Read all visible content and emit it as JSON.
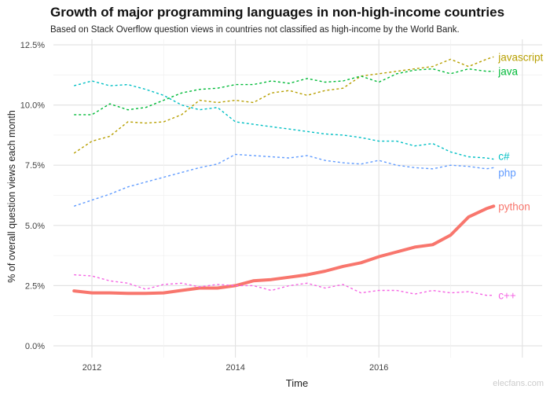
{
  "chart_data": {
    "type": "line",
    "title": "Growth of major programming languages in non-high-income countries",
    "subtitle": "Based on Stack Overflow question views in countries not classified as high-income by the World Bank.",
    "xlabel": "Time",
    "ylabel": "% of overall question views each month",
    "xlim": [
      2011.5,
      2018.1
    ],
    "ylim": [
      0,
      12.5
    ],
    "xticks": [
      "2012",
      "2014",
      "2016"
    ],
    "yticks": [
      "0.0%",
      "2.5%",
      "5.0%",
      "7.5%",
      "10.0%",
      "12.5%"
    ],
    "grid": true,
    "legend": "direct-labels-right",
    "x": [
      2011.75,
      2012,
      2012.25,
      2012.5,
      2012.75,
      2013,
      2013.25,
      2013.5,
      2013.75,
      2014,
      2014.25,
      2014.5,
      2014.75,
      2015,
      2015.25,
      2015.5,
      2015.75,
      2016,
      2016.25,
      2016.5,
      2016.75,
      2017,
      2017.25,
      2017.5,
      2017.6
    ],
    "series": [
      {
        "name": "javascript",
        "color": "#b79f00",
        "style": "dashed",
        "values": [
          8.0,
          8.5,
          8.7,
          9.3,
          9.25,
          9.3,
          9.6,
          10.2,
          10.1,
          10.2,
          10.1,
          10.5,
          10.6,
          10.4,
          10.6,
          10.7,
          11.2,
          11.3,
          11.4,
          11.5,
          11.6,
          11.9,
          11.6,
          11.9,
          12.0
        ]
      },
      {
        "name": "java",
        "color": "#00ba38",
        "style": "dashed",
        "values": [
          9.6,
          9.6,
          10.05,
          9.8,
          9.9,
          10.2,
          10.5,
          10.65,
          10.7,
          10.85,
          10.85,
          11.0,
          10.9,
          11.1,
          10.95,
          11.0,
          11.2,
          10.95,
          11.3,
          11.45,
          11.5,
          11.3,
          11.5,
          11.4,
          11.4
        ]
      },
      {
        "name": "c#",
        "color": "#00bfc4",
        "style": "dashed",
        "values": [
          10.8,
          11.0,
          10.8,
          10.85,
          10.65,
          10.4,
          10.0,
          9.8,
          9.9,
          9.3,
          9.2,
          9.1,
          9.0,
          8.9,
          8.8,
          8.75,
          8.65,
          8.5,
          8.5,
          8.3,
          8.4,
          8.05,
          7.85,
          7.8,
          7.75
        ]
      },
      {
        "name": "php",
        "color": "#619cff",
        "style": "dashed",
        "values": [
          5.8,
          6.05,
          6.3,
          6.6,
          6.8,
          7.0,
          7.2,
          7.4,
          7.55,
          7.95,
          7.9,
          7.85,
          7.8,
          7.9,
          7.7,
          7.6,
          7.55,
          7.7,
          7.5,
          7.4,
          7.35,
          7.5,
          7.45,
          7.35,
          7.4
        ]
      },
      {
        "name": "python",
        "color": "#f8766d",
        "style": "solid",
        "values": [
          2.28,
          2.2,
          2.2,
          2.18,
          2.18,
          2.2,
          2.3,
          2.4,
          2.4,
          2.5,
          2.7,
          2.75,
          2.85,
          2.95,
          3.1,
          3.3,
          3.45,
          3.7,
          3.9,
          4.1,
          4.2,
          4.6,
          5.35,
          5.7,
          5.8
        ]
      },
      {
        "name": "c++",
        "color": "#f564e3",
        "style": "dashed",
        "values": [
          2.95,
          2.9,
          2.7,
          2.6,
          2.35,
          2.55,
          2.6,
          2.45,
          2.55,
          2.5,
          2.5,
          2.3,
          2.5,
          2.6,
          2.4,
          2.55,
          2.2,
          2.3,
          2.3,
          2.15,
          2.3,
          2.2,
          2.25,
          2.1,
          2.1
        ]
      }
    ]
  },
  "watermark": "elecfans.com"
}
